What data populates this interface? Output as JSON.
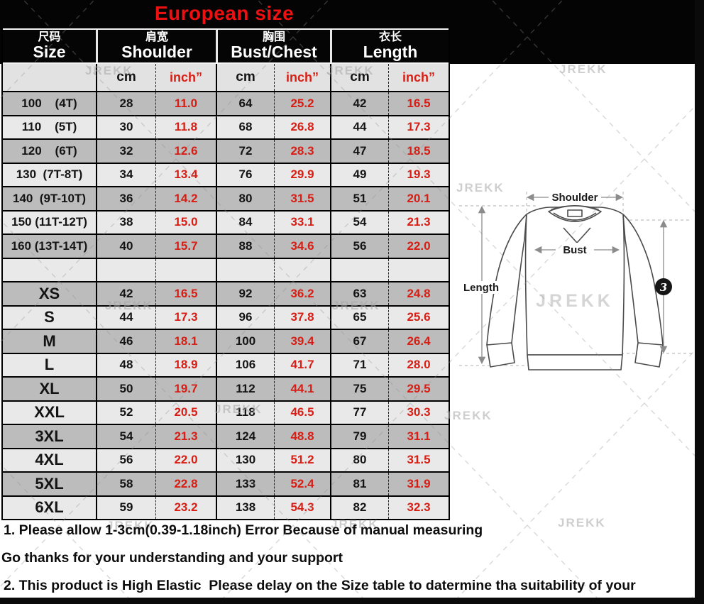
{
  "title": "European size",
  "watermark": "JREKK",
  "colors": {
    "accent_red": "#d81e14",
    "title_red": "#ee1010",
    "row_dark": "#bcbcbc",
    "row_light": "#e9e9e9",
    "header_bg": "#050505"
  },
  "table": {
    "groups": [
      {
        "zh": "尺码",
        "en": "Size"
      },
      {
        "zh": "肩宽",
        "en": "Shoulder"
      },
      {
        "zh": "胸围",
        "en": "Bust/Chest"
      },
      {
        "zh": "衣长",
        "en": "Length"
      }
    ],
    "unit_cm": "cm",
    "unit_inch": "inch”",
    "rows": [
      {
        "size": "100    (4T)",
        "kid": true,
        "values": [
          "28",
          "11.0",
          "64",
          "25.2",
          "42",
          "16.5"
        ]
      },
      {
        "size": "110    (5T)",
        "kid": true,
        "values": [
          "30",
          "11.8",
          "68",
          "26.8",
          "44",
          "17.3"
        ]
      },
      {
        "size": "120    (6T)",
        "kid": true,
        "values": [
          "32",
          "12.6",
          "72",
          "28.3",
          "47",
          "18.5"
        ]
      },
      {
        "size": "130  (7T-8T)",
        "kid": true,
        "values": [
          "34",
          "13.4",
          "76",
          "29.9",
          "49",
          "19.3"
        ]
      },
      {
        "size": "140  (9T-10T)",
        "kid": true,
        "values": [
          "36",
          "14.2",
          "80",
          "31.5",
          "51",
          "20.1"
        ]
      },
      {
        "size": "150 (11T-12T)",
        "kid": true,
        "values": [
          "38",
          "15.0",
          "84",
          "33.1",
          "54",
          "21.3"
        ]
      },
      {
        "size": "160 (13T-14T)",
        "kid": true,
        "values": [
          "40",
          "15.7",
          "88",
          "34.6",
          "56",
          "22.0"
        ]
      },
      {
        "size": "",
        "kid": false,
        "values": [
          "",
          "",
          "",
          "",
          "",
          ""
        ]
      },
      {
        "size": "XS",
        "kid": false,
        "values": [
          "42",
          "16.5",
          "92",
          "36.2",
          "63",
          "24.8"
        ]
      },
      {
        "size": "S",
        "kid": false,
        "values": [
          "44",
          "17.3",
          "96",
          "37.8",
          "65",
          "25.6"
        ]
      },
      {
        "size": "M",
        "kid": false,
        "values": [
          "46",
          "18.1",
          "100",
          "39.4",
          "67",
          "26.4"
        ]
      },
      {
        "size": "L",
        "kid": false,
        "values": [
          "48",
          "18.9",
          "106",
          "41.7",
          "71",
          "28.0"
        ]
      },
      {
        "size": "XL",
        "kid": false,
        "values": [
          "50",
          "19.7",
          "112",
          "44.1",
          "75",
          "29.5"
        ]
      },
      {
        "size": "XXL",
        "kid": false,
        "values": [
          "52",
          "20.5",
          "118",
          "46.5",
          "77",
          "30.3"
        ]
      },
      {
        "size": "3XL",
        "kid": false,
        "values": [
          "54",
          "21.3",
          "124",
          "48.8",
          "79",
          "31.1"
        ]
      },
      {
        "size": "4XL",
        "kid": false,
        "values": [
          "56",
          "22.0",
          "130",
          "51.2",
          "80",
          "31.5"
        ]
      },
      {
        "size": "5XL",
        "kid": false,
        "values": [
          "58",
          "22.8",
          "133",
          "52.4",
          "81",
          "31.9"
        ]
      },
      {
        "size": "6XL",
        "kid": false,
        "values": [
          "59",
          "23.2",
          "138",
          "54.3",
          "82",
          "32.3"
        ]
      }
    ]
  },
  "diagram": {
    "shoulder": "Shoulder",
    "bust": "Bust",
    "length": "Length",
    "badge": "3"
  },
  "notes": [
    "1. Please allow 1-3cm(0.39-1.18inch) Error Because of manual measuring",
    "Go thanks for your understanding and your support",
    "2. This product is High Elastic  Please delay on the Size table to datermine tha suitability of your"
  ]
}
